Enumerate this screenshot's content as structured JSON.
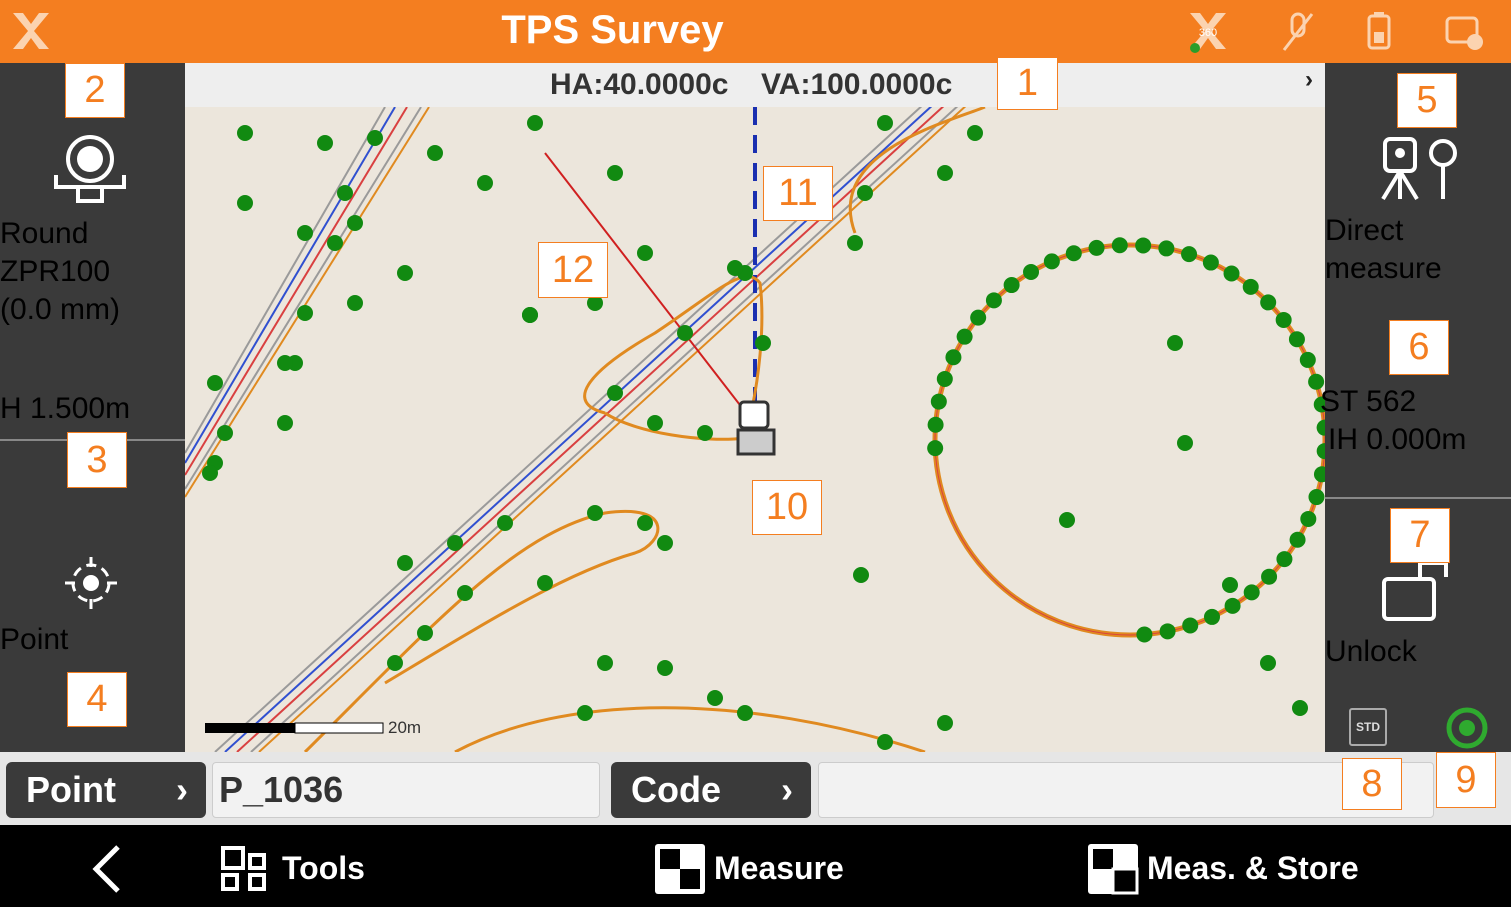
{
  "header": {
    "title": "TPS Survey",
    "icon_text": "360"
  },
  "status_bar": {
    "ha": "HA:40.0000c",
    "va": "VA:100.0000c"
  },
  "left_panel": {
    "prism_type": "Round",
    "prism_name": "ZPR100",
    "prism_offset": "(0.0 mm)",
    "height": "H 1.500m",
    "mode": "Point"
  },
  "right_panel": {
    "measure_mode_line1": "Direct",
    "measure_mode_line2": "measure",
    "station": "ST 562",
    "instrument_height": "IH 0.000m",
    "lock": "Unlock",
    "std": "STD"
  },
  "map": {
    "scale": "20m"
  },
  "input_bar": {
    "point_button": "Point",
    "point_value": "P_1036",
    "code_button": "Code"
  },
  "footer": {
    "tools": "Tools",
    "measure": "Measure",
    "meas_store": "Meas. & Store"
  },
  "callouts": [
    "1",
    "2",
    "3",
    "4",
    "5",
    "6",
    "7",
    "8",
    "9",
    "10",
    "11",
    "12"
  ]
}
